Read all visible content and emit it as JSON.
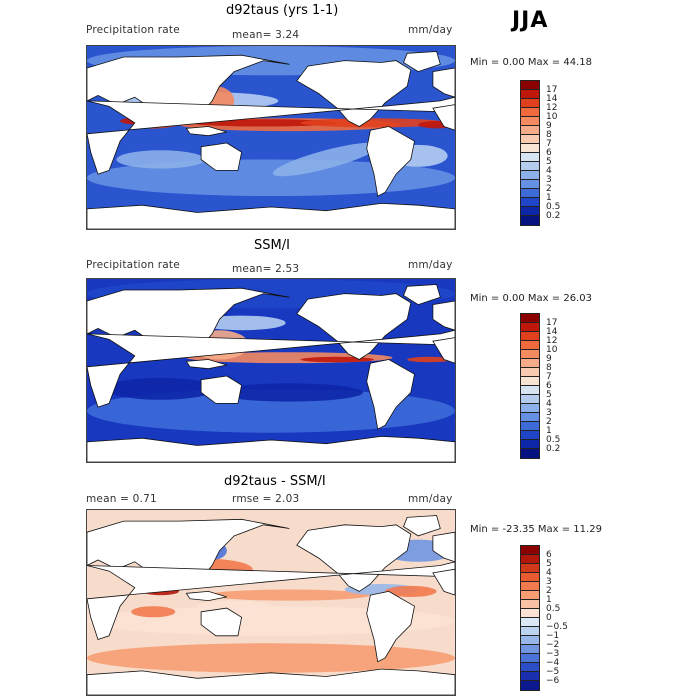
{
  "season": "JJA",
  "panels": [
    {
      "title": "d92taus (yrs 1-1)",
      "left": "Precipitation rate",
      "mid": "mean=    3.24",
      "right": "mm/day",
      "minmax": "Min =    0.00 Max =   44.18",
      "levels": [
        "17",
        "14",
        "12",
        "10",
        "9",
        "8",
        "7",
        "6",
        "5",
        "4",
        "3",
        "2",
        "1",
        "0.5",
        "0.2"
      ],
      "colors": [
        "#8b0000",
        "#c0170b",
        "#e0401d",
        "#f06a3e",
        "#f48a60",
        "#f6ac88",
        "#f8cbb0",
        "#f7e4d2",
        "#d7e5f3",
        "#b4cdef",
        "#8cb0ea",
        "#6590e3",
        "#3d6bd8",
        "#1f46c8",
        "#0d26a8",
        "#061280"
      ],
      "style": "model"
    },
    {
      "title": "SSM/I",
      "left": "Precipitation rate",
      "mid": "mean=    2.53",
      "right": "mm/day",
      "minmax": "Min =    0.00 Max =   26.03",
      "levels": [
        "17",
        "14",
        "12",
        "10",
        "9",
        "8",
        "7",
        "6",
        "5",
        "4",
        "3",
        "2",
        "1",
        "0.5",
        "0.2"
      ],
      "colors": [
        "#8b0000",
        "#c0170b",
        "#e0401d",
        "#f06a3e",
        "#f48a60",
        "#f6ac88",
        "#f8cbb0",
        "#f7e4d2",
        "#d7e5f3",
        "#b4cdef",
        "#8cb0ea",
        "#6590e3",
        "#3d6bd8",
        "#1f46c8",
        "#0d26a8",
        "#061280"
      ],
      "style": "obs"
    },
    {
      "title": "d92taus - SSM/I",
      "left": "mean =     0.71",
      "mid": "rmse =     2.03",
      "right": "mm/day",
      "minmax": "Min = -23.35 Max =   11.29",
      "levels": [
        "6",
        "5",
        "4",
        "3",
        "2",
        "1",
        "0.5",
        "0",
        "−0.5",
        "−1",
        "−2",
        "−3",
        "−4",
        "−5",
        "−6"
      ],
      "colors": [
        "#8b0000",
        "#b3160a",
        "#d03a1b",
        "#e85a30",
        "#f27a4e",
        "#f69d74",
        "#f9c2a4",
        "#fbe2d4",
        "#dbe8f5",
        "#bcd3f0",
        "#97b7ea",
        "#7096e2",
        "#4b72d7",
        "#2b4ec6",
        "#1a2fb0",
        "#0b1890"
      ],
      "style": "diff"
    }
  ]
}
